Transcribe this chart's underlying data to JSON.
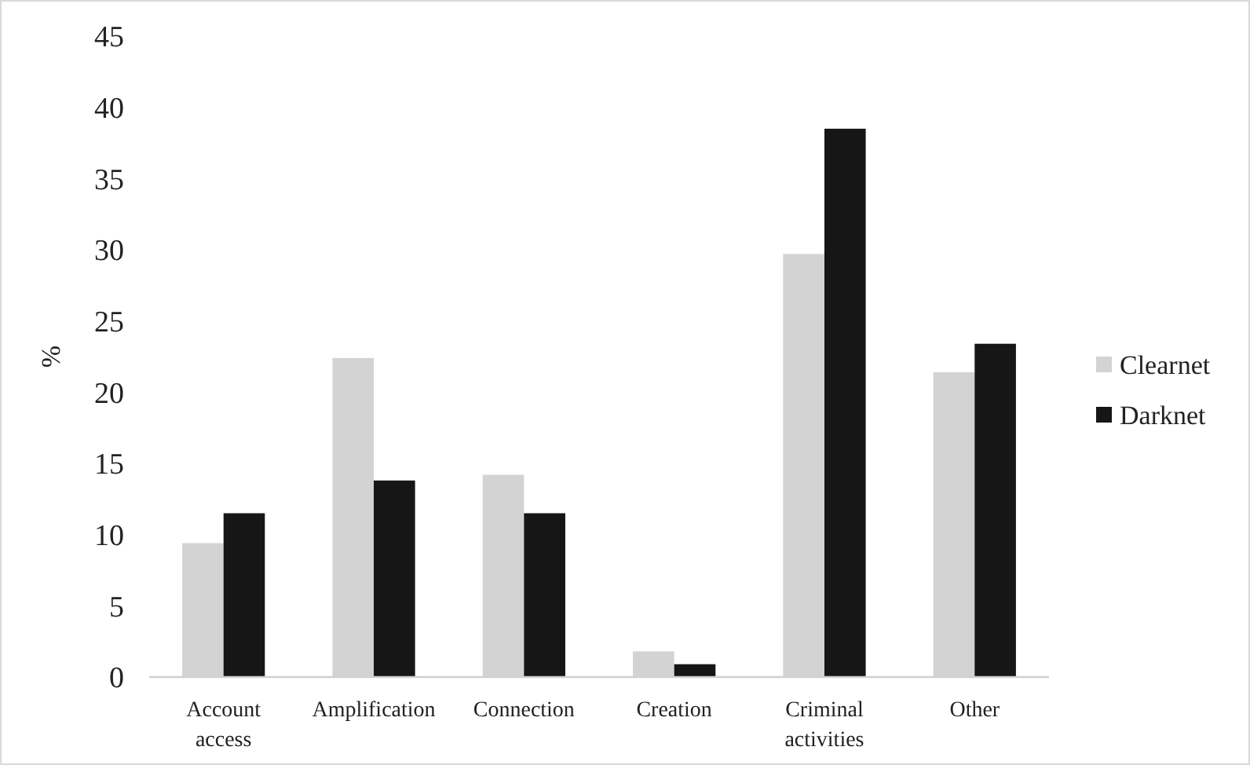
{
  "chart_data": {
    "type": "bar",
    "ylabel": "%",
    "categories": [
      "Account access",
      "Amplification",
      "Connection",
      "Creation",
      "Criminal activities",
      "Other"
    ],
    "series": [
      {
        "name": "Clearnet",
        "color": "#d3d3d3",
        "values": [
          9.4,
          22.4,
          14.2,
          1.8,
          29.7,
          21.4
        ]
      },
      {
        "name": "Darknet",
        "color": "#161616",
        "values": [
          11.5,
          13.8,
          11.5,
          0.9,
          38.5,
          23.4
        ]
      }
    ],
    "ylim": [
      0,
      45
    ],
    "yticks": [
      0,
      5,
      10,
      15,
      20,
      25,
      30,
      35,
      40,
      45
    ],
    "grid": false,
    "legend": "right"
  }
}
